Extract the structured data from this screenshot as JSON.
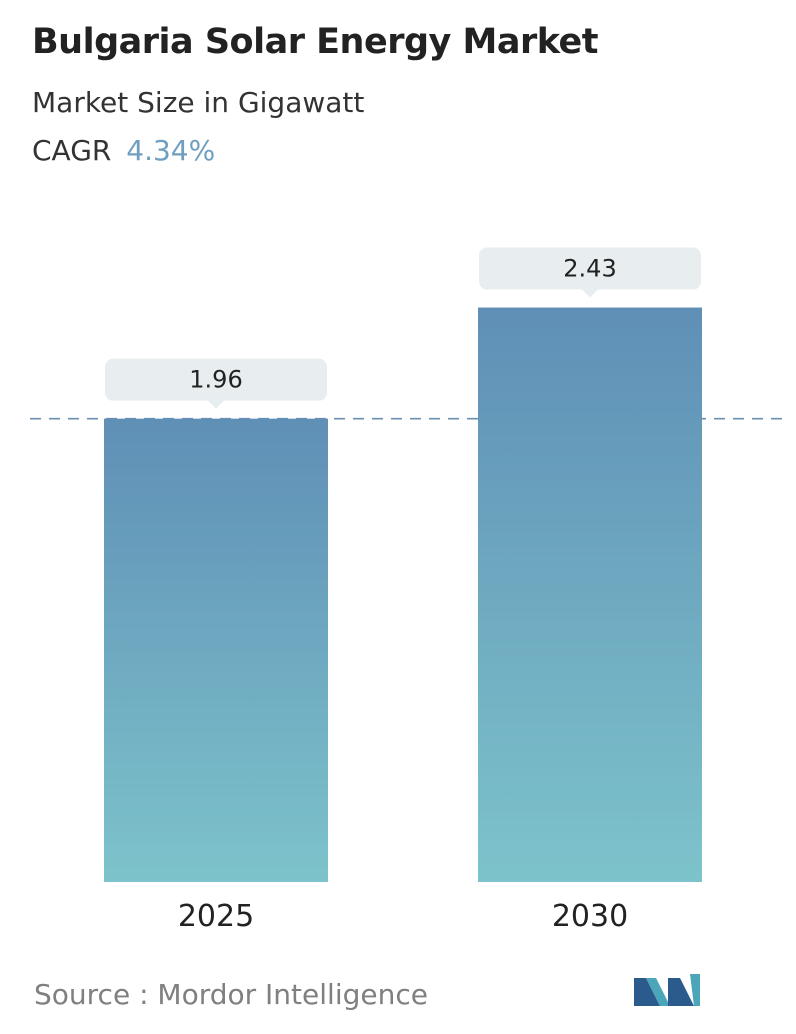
{
  "header": {
    "title": "Bulgaria Solar Energy Market",
    "subtitle": "Market Size in Gigawatt",
    "cagr_label": "CAGR",
    "cagr_value": "4.34%"
  },
  "chart_data": {
    "type": "bar",
    "categories": [
      "2025",
      "2030"
    ],
    "values": [
      1.96,
      2.43
    ],
    "value_labels": [
      "1.96",
      "2.43"
    ],
    "reference_line": 1.96,
    "colors": {
      "bar_top": "#5f8fb6",
      "bar_bottom": "#7dc3cb",
      "label_bg": "#e8eef0",
      "reference_line": "#6a8fae"
    },
    "title": "",
    "xlabel": "",
    "ylabel": ""
  },
  "footer": {
    "source_label": "Source :",
    "source_name": "Mordor Intelligence",
    "logo_icon": "mordor-intelligence-logo-icon",
    "logo_colors": [
      "#2b5a8c",
      "#4aa6b8"
    ]
  }
}
